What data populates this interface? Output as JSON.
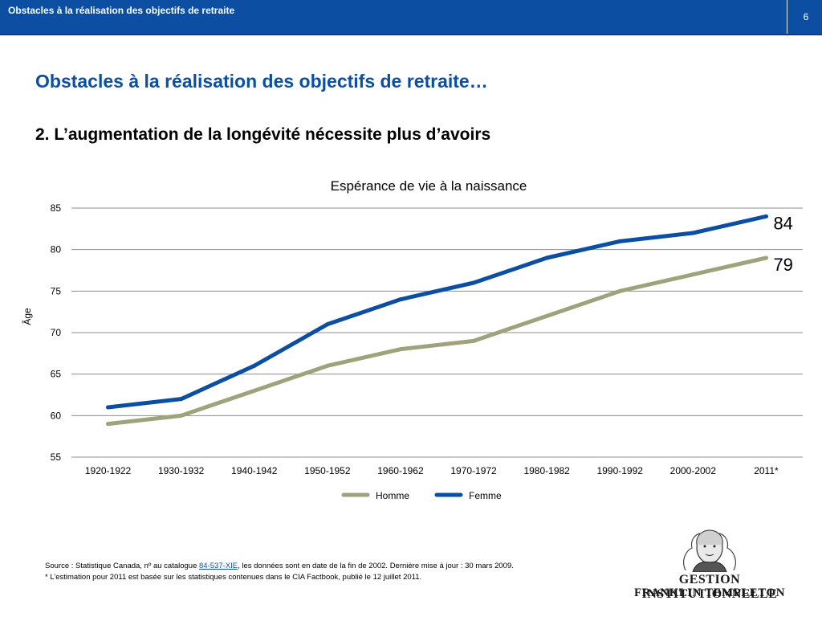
{
  "header": {
    "title": "Obstacles à la réalisation des objectifs de retraite",
    "page_number": "6"
  },
  "slide": {
    "title": "Obstacles à la réalisation des objectifs de retraite…",
    "subtitle": "2.  L’augmentation de la longévité nécessite plus d’avoirs"
  },
  "chart_data": {
    "type": "line",
    "title": "Espérance de vie à la naissance",
    "xlabel": "",
    "ylabel": "Âge",
    "categories": [
      "1920-1922",
      "1930-1932",
      "1940-1942",
      "1950-1952",
      "1960-1962",
      "1970-1972",
      "1980-1982",
      "1990-1992",
      "2000-2002",
      "2011*"
    ],
    "series": [
      {
        "name": "Homme",
        "color": "#9fa37c",
        "values": [
          59,
          60,
          63,
          66,
          68,
          69,
          72,
          75,
          77,
          79
        ],
        "end_label": "79"
      },
      {
        "name": "Femme",
        "color": "#0b4ea2",
        "values": [
          61,
          62,
          66,
          71,
          74,
          76,
          79,
          81,
          82,
          84
        ],
        "end_label": "84"
      }
    ],
    "ylim": [
      55,
      85
    ],
    "yticks": [
      55,
      60,
      65,
      70,
      75,
      80,
      85
    ],
    "grid": true,
    "legend_position": "bottom"
  },
  "footer": {
    "source_prefix": "Source : Statistique Canada, nº au catalogue ",
    "source_link": "84-537-XIE",
    "source_suffix": ", les données sont en date de la fin de 2002. Dernière mise à jour : 30 mars 2009.",
    "note": "* L’estimation pour 2011 est basée sur les statistiques contenues dans le CIA Factbook, publié le 12 juillet 2011."
  },
  "logo": {
    "line1": "GESTION INSTITUTIONNELLE",
    "line2": "FRANKLIN TEMPLETON"
  }
}
